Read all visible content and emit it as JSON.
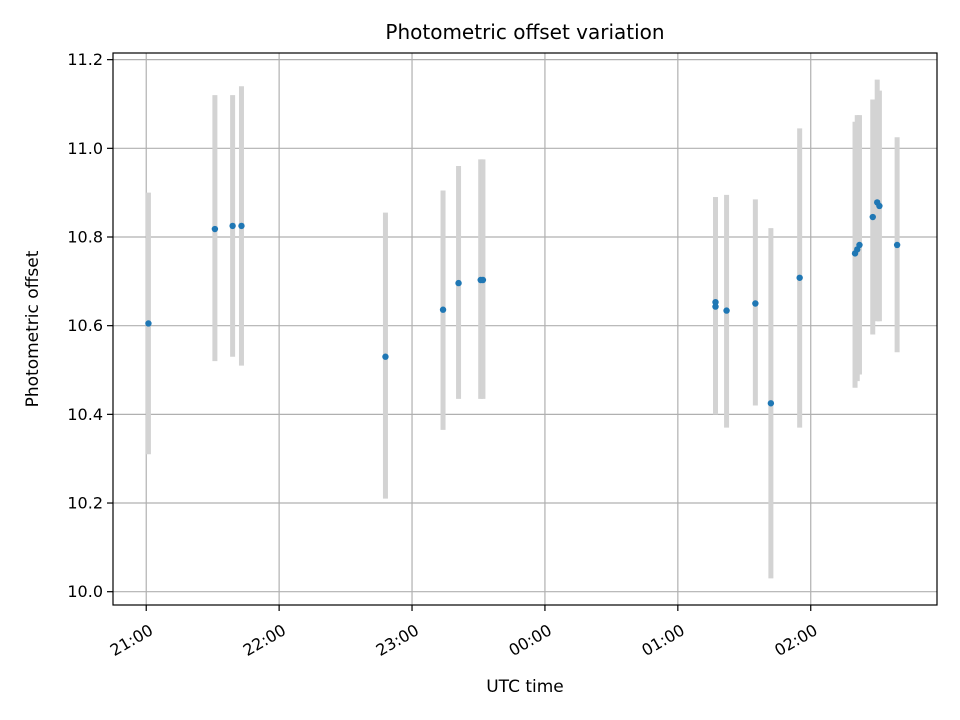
{
  "chart_data": {
    "type": "scatter",
    "title": "Photometric offset variation",
    "xlabel": "UTC time",
    "ylabel": "Photometric offset",
    "grid": true,
    "x_unit": "UTC time (HH:MM)",
    "x_range": [
      "20:45",
      "02:57"
    ],
    "ylim": [
      9.97,
      11.215
    ],
    "x_ticks": [
      "21:00",
      "22:00",
      "23:00",
      "00:00",
      "01:00",
      "02:00"
    ],
    "y_ticks": [
      "10.0",
      "10.2",
      "10.4",
      "10.6",
      "10.8",
      "11.0",
      "11.2"
    ],
    "series": [
      {
        "style": "points with vertical error bars",
        "point_color": "#1f77b4",
        "errorbar_color": "#d3d3d3",
        "points": [
          {
            "x": "21:01",
            "y": 10.605,
            "ylow": 10.31,
            "yhigh": 10.9
          },
          {
            "x": "21:31",
            "y": 10.818,
            "ylow": 10.52,
            "yhigh": 11.12
          },
          {
            "x": "21:39",
            "y": 10.825,
            "ylow": 10.53,
            "yhigh": 11.12
          },
          {
            "x": "21:43",
            "y": 10.825,
            "ylow": 10.51,
            "yhigh": 11.14
          },
          {
            "x": "22:48",
            "y": 10.53,
            "ylow": 10.21,
            "yhigh": 10.855
          },
          {
            "x": "23:14",
            "y": 10.636,
            "ylow": 10.365,
            "yhigh": 10.905
          },
          {
            "x": "23:21",
            "y": 10.696,
            "ylow": 10.435,
            "yhigh": 10.96
          },
          {
            "x": "23:31",
            "y": 10.703,
            "ylow": 10.435,
            "yhigh": 10.975
          },
          {
            "x": "23:32",
            "y": 10.703,
            "ylow": 10.435,
            "yhigh": 10.975
          },
          {
            "x": "01:17",
            "y": 10.653,
            "ylow": 10.4,
            "yhigh": 10.89
          },
          {
            "x": "01:17",
            "y": 10.643,
            "ylow": 10.4,
            "yhigh": 10.89
          },
          {
            "x": "01:22",
            "y": 10.634,
            "ylow": 10.37,
            "yhigh": 10.895
          },
          {
            "x": "01:35",
            "y": 10.65,
            "ylow": 10.42,
            "yhigh": 10.885
          },
          {
            "x": "01:42",
            "y": 10.425,
            "ylow": 10.03,
            "yhigh": 10.82
          },
          {
            "x": "01:55",
            "y": 10.708,
            "ylow": 10.37,
            "yhigh": 11.045
          },
          {
            "x": "02:20",
            "y": 10.763,
            "ylow": 10.46,
            "yhigh": 11.06
          },
          {
            "x": "02:21",
            "y": 10.772,
            "ylow": 10.475,
            "yhigh": 11.075
          },
          {
            "x": "02:22",
            "y": 10.782,
            "ylow": 10.49,
            "yhigh": 11.075
          },
          {
            "x": "02:28",
            "y": 10.845,
            "ylow": 10.58,
            "yhigh": 11.11
          },
          {
            "x": "02:30",
            "y": 10.878,
            "ylow": 10.61,
            "yhigh": 11.155
          },
          {
            "x": "02:31",
            "y": 10.87,
            "ylow": 10.61,
            "yhigh": 11.13
          },
          {
            "x": "02:39",
            "y": 10.782,
            "ylow": 10.54,
            "yhigh": 11.025
          }
        ]
      }
    ]
  }
}
